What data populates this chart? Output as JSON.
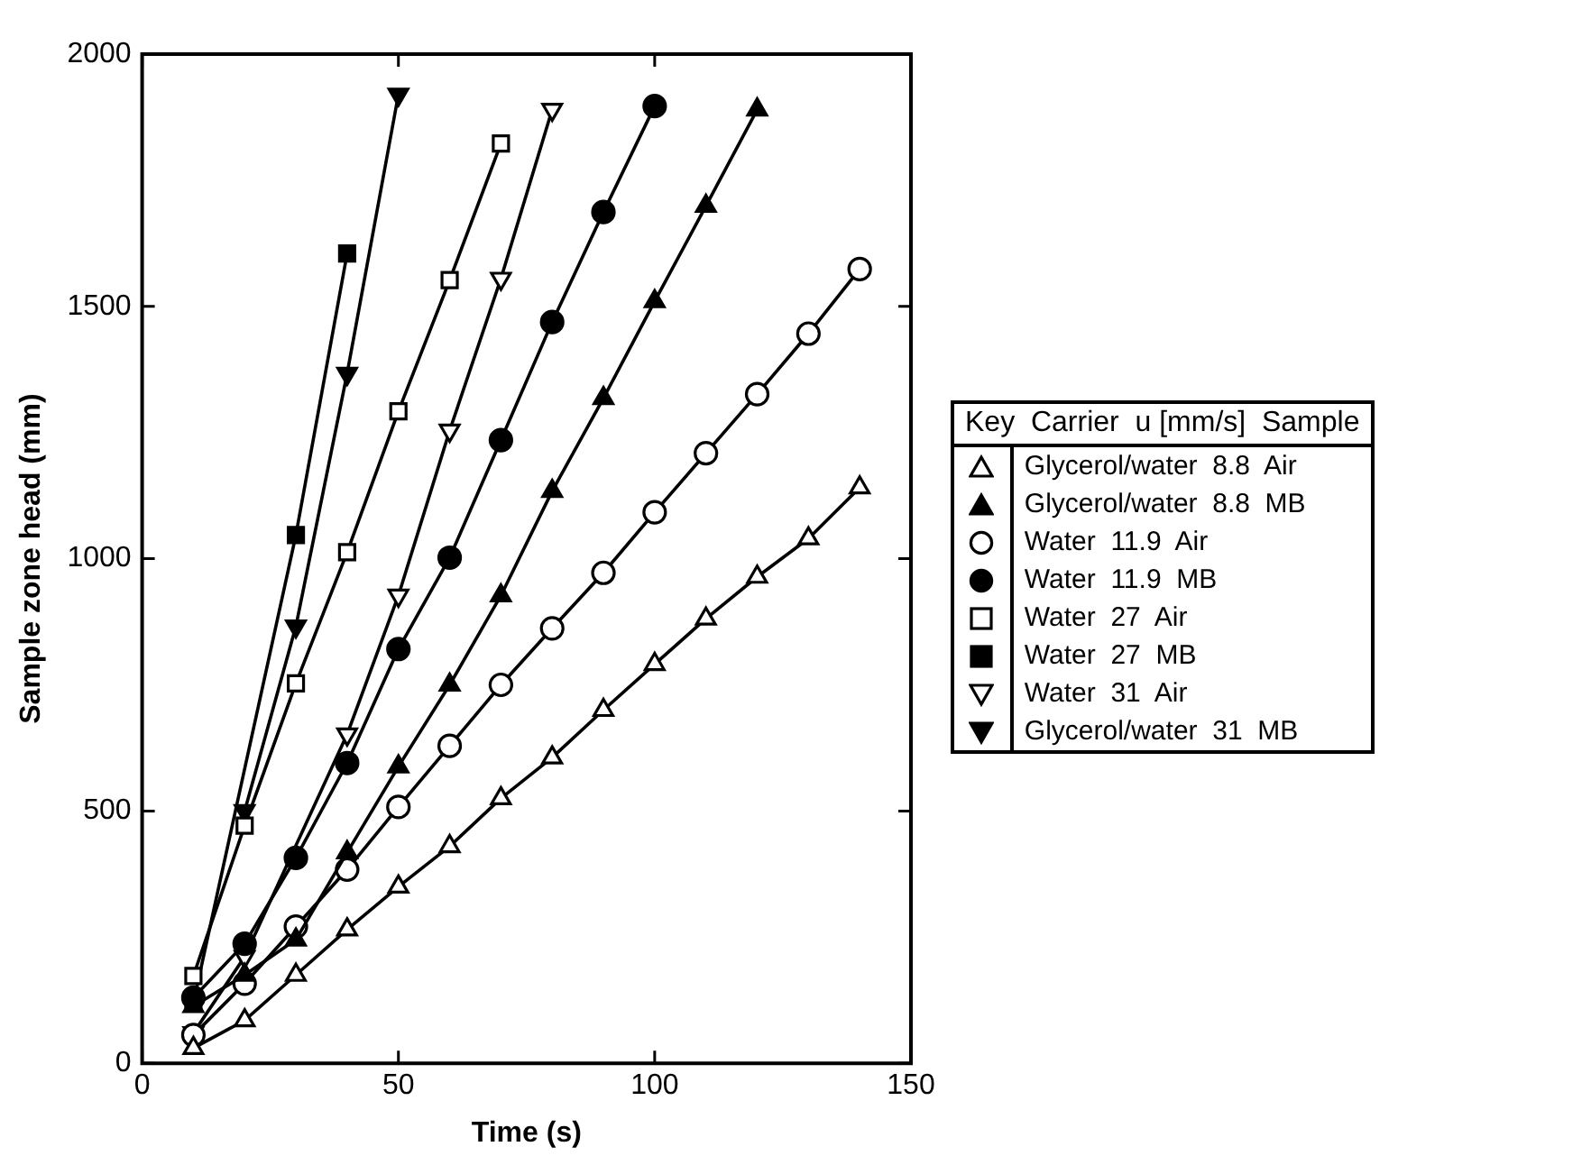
{
  "chart_data": {
    "type": "line",
    "xlabel": "Time (s)",
    "ylabel": "Sample zone head (mm)",
    "xlim": [
      0,
      150
    ],
    "xticks": [
      0,
      50,
      100,
      150
    ],
    "ylim": [
      0,
      2000
    ],
    "yticks": [
      0,
      500,
      1000,
      1500,
      2000
    ],
    "grid": false,
    "legend": "right",
    "legend_title": "Key  Carrier  u [mm/s]  Sample",
    "line_style": "solid",
    "series": [
      {
        "name": "Glycerol/water  8.8  Air",
        "color": "#000000",
        "marker": "triangle-open",
        "x": [
          10,
          20,
          30,
          40,
          50,
          60,
          70,
          80,
          90,
          100,
          110,
          120,
          130,
          140
        ],
        "values": [
          30,
          85,
          175,
          265,
          350,
          430,
          525,
          606,
          700,
          791,
          881,
          964,
          1040,
          1141
        ]
      },
      {
        "name": "Glycerol/water  8.8  MB",
        "color": "#000000",
        "marker": "triangle",
        "x": [
          10,
          20,
          30,
          40,
          50,
          60,
          70,
          80,
          90,
          100,
          110,
          120
        ],
        "values": [
          113,
          175,
          245,
          418,
          588,
          750,
          927,
          1134,
          1318,
          1510,
          1699,
          1890
        ]
      },
      {
        "name": "Water  11.9  Air",
        "color": "#000000",
        "marker": "circle-open",
        "x": [
          10,
          20,
          30,
          40,
          50,
          60,
          70,
          80,
          90,
          100,
          110,
          120,
          130,
          140
        ],
        "values": [
          56,
          158,
          271,
          384,
          508,
          629,
          750,
          862,
          972,
          1092,
          1209,
          1326,
          1446,
          1574
        ]
      },
      {
        "name": "Water  11.9  MB",
        "color": "#000000",
        "marker": "circle",
        "x": [
          10,
          20,
          30,
          40,
          50,
          60,
          70,
          80,
          90,
          100
        ],
        "values": [
          130,
          237,
          407,
          595,
          821,
          1002,
          1235,
          1469,
          1687,
          1897
        ]
      },
      {
        "name": "Water  27  Air",
        "color": "#000000",
        "marker": "square-open",
        "x": [
          10,
          20,
          30,
          40,
          50,
          60,
          70
        ],
        "values": [
          173,
          471,
          753,
          1013,
          1292,
          1552,
          1823
        ]
      },
      {
        "name": "Water  27  MB",
        "color": "#000000",
        "marker": "square",
        "x": [
          10,
          20,
          30,
          40
        ],
        "values": [
          120,
          null,
          1047,
          1605
        ]
      },
      {
        "name": "Water  31  Air",
        "color": "#000000",
        "marker": "triangle-down-open",
        "x": [
          10,
          20,
          30,
          40,
          50,
          60,
          70,
          80
        ],
        "values": [
          60,
          211,
          null,
          652,
          927,
          1254,
          1555,
          1890
        ]
      },
      {
        "name": "Glycerol/water  31  MB",
        "color": "#000000",
        "marker": "triangle-down",
        "x": [
          20,
          30,
          40,
          50
        ],
        "values": [
          500,
          866,
          1367,
          1920
        ]
      }
    ]
  }
}
